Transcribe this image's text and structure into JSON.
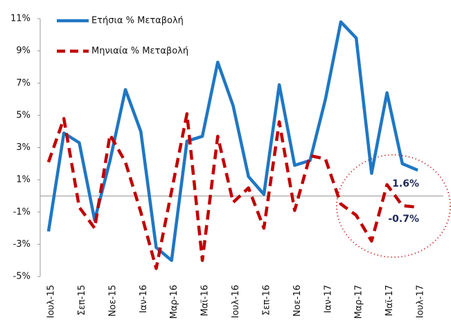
{
  "chart_data": {
    "type": "line",
    "categories": [
      "Ιουλ-15",
      null,
      "Σεπ-15",
      null,
      "Νοε-15",
      null,
      "Ιαν-16",
      null,
      "Μαρ-16",
      null,
      "Μαϊ-16",
      null,
      "Ιουλ-16",
      null,
      "Σεπ-16",
      null,
      "Νοε-16",
      null,
      "Ιαν-17",
      null,
      "Μαρ-17",
      null,
      "Μαϊ-17",
      null,
      "Ιουλ-17"
    ],
    "series": [
      {
        "name": "Ετήσια % Μεταβολή",
        "color": "#1f77c4",
        "dash": false,
        "values": [
          -2.2,
          3.9,
          3.3,
          -1.5,
          2.2,
          6.6,
          4.0,
          -3.2,
          -4.0,
          3.4,
          3.7,
          8.3,
          5.6,
          1.2,
          0.1,
          6.9,
          1.9,
          2.2,
          6.0,
          10.8,
          9.8,
          1.4,
          6.4,
          2.0,
          1.6
        ],
        "value_labels": [
          null,
          null,
          null,
          null,
          null,
          null,
          null,
          null,
          null,
          null,
          null,
          null,
          null,
          null,
          null,
          null,
          null,
          null,
          null,
          null,
          null,
          null,
          null,
          null,
          "1.6%"
        ]
      },
      {
        "name": "Μηνιαία % Μεταβολή",
        "color": "#c00000",
        "dash": true,
        "values": [
          2.1,
          4.8,
          -0.7,
          -2.0,
          3.8,
          2.1,
          -1.0,
          -4.5,
          0.3,
          5.1,
          -4.0,
          3.7,
          -0.4,
          0.5,
          -2.0,
          4.6,
          -0.9,
          2.5,
          2.3,
          -0.5,
          -1.2,
          -2.8,
          0.7,
          -0.6,
          -0.7
        ],
        "value_labels": [
          null,
          null,
          null,
          null,
          null,
          null,
          null,
          null,
          null,
          null,
          null,
          null,
          null,
          null,
          null,
          null,
          null,
          null,
          null,
          null,
          null,
          null,
          null,
          null,
          "-0.7%"
        ]
      }
    ],
    "ylim": [
      -5,
      11
    ],
    "yticks": [
      {
        "value": -5,
        "label": "-5%"
      },
      {
        "value": -3,
        "label": "-3%"
      },
      {
        "value": -1,
        "label": "-1%"
      },
      {
        "value": 1,
        "label": "1%"
      },
      {
        "value": 3,
        "label": "3%"
      },
      {
        "value": 5,
        "label": "5%"
      },
      {
        "value": 7,
        "label": "7%"
      },
      {
        "value": 9,
        "label": "9%"
      },
      {
        "value": 11,
        "label": "11%"
      }
    ],
    "legend": "top-left"
  }
}
